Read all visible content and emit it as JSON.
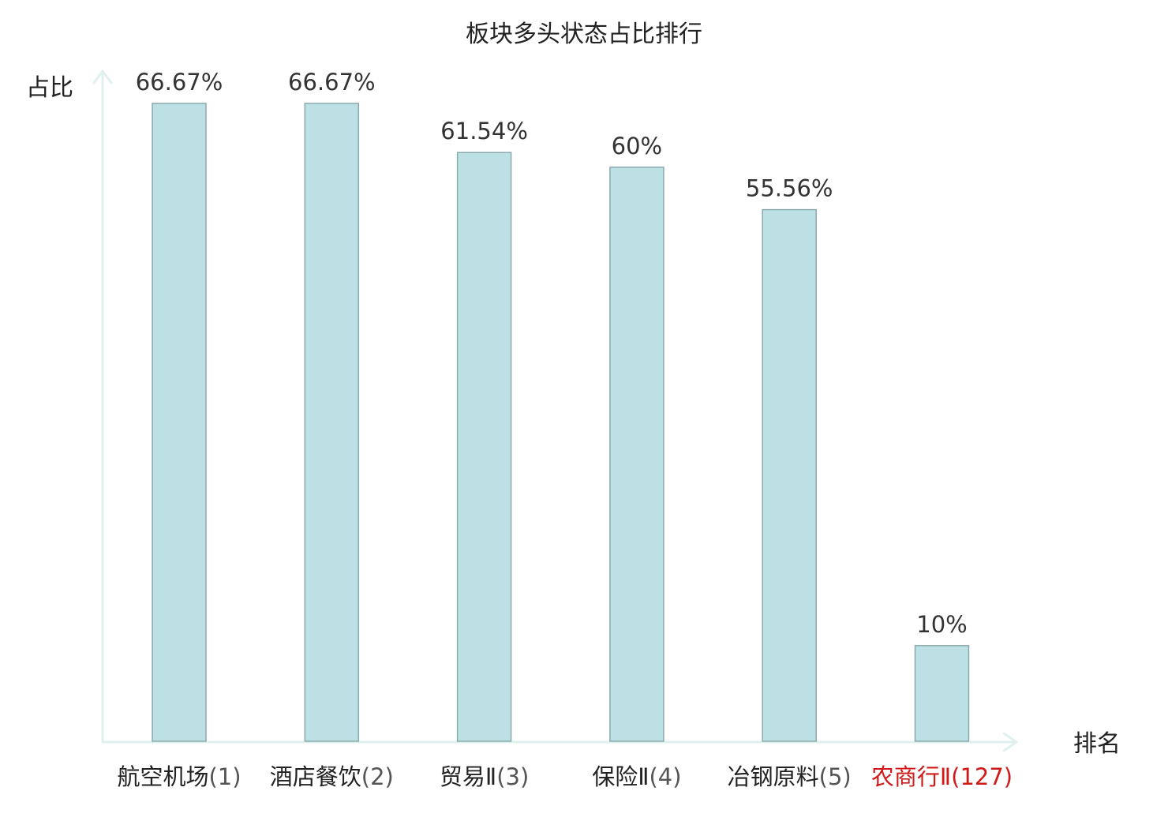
{
  "chart_data": {
    "type": "bar",
    "title": "板块多头状态占比排行",
    "ylabel": "占比",
    "xlabel": "排名",
    "categories": [
      {
        "name": "航空机场",
        "rank": "(1)",
        "highlight": false
      },
      {
        "name": "酒店餐饮",
        "rank": "(2)",
        "highlight": false
      },
      {
        "name": "贸易Ⅱ",
        "rank": "(3)",
        "highlight": false
      },
      {
        "name": "保险Ⅱ",
        "rank": "(4)",
        "highlight": false
      },
      {
        "name": "冶钢原料",
        "rank": "(5)",
        "highlight": false
      },
      {
        "name": "农商行Ⅱ",
        "rank": "(127)",
        "highlight": true
      }
    ],
    "values": [
      66.67,
      66.67,
      61.54,
      60,
      55.56,
      10
    ],
    "value_labels": [
      "66.67%",
      "66.67%",
      "61.54%",
      "60%",
      "55.56%",
      "10%"
    ],
    "ylim": [
      0,
      66.67
    ],
    "grid": false,
    "colors": {
      "bar_fill": "#bce0e3",
      "bar_stroke": "#8aaaae",
      "axis": "#dff0ef",
      "label_text": "#222222",
      "rank_text": "#555555",
      "highlight_text": "#d01a1a"
    }
  }
}
